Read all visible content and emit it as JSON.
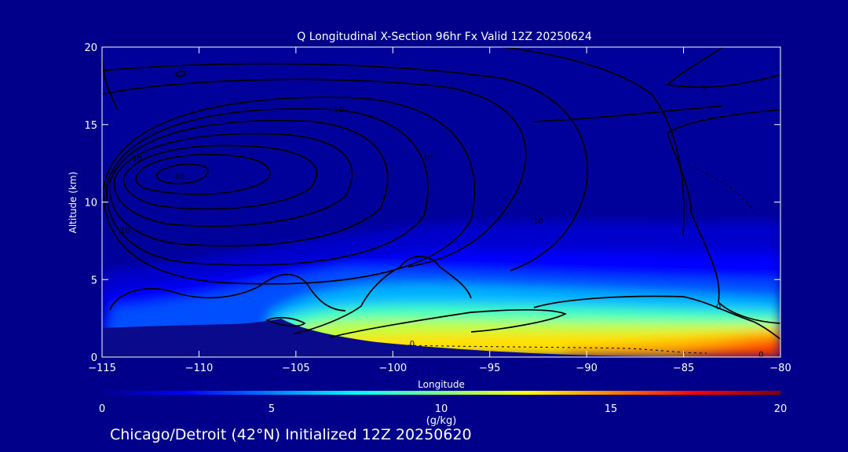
{
  "chart_data": {
    "type": "heatmap",
    "title": "Q Longitudinal X-Section 96hr  Fx Valid 12Z 20250624",
    "xlabel": "Longitude",
    "ylabel": "Altitude (km)",
    "xlim": [
      -115,
      -80
    ],
    "ylim": [
      0,
      20
    ],
    "x_ticks": [
      -115,
      -110,
      -105,
      -100,
      -95,
      -90,
      -85,
      -80
    ],
    "x_tick_labels": [
      "−115",
      "−110",
      "−105",
      "−100",
      "−95",
      "−90",
      "−85",
      "−80"
    ],
    "y_ticks": [
      0,
      5,
      10,
      15,
      20
    ],
    "y_tick_labels": [
      "0",
      "5",
      "10",
      "15",
      "20"
    ],
    "colorbar": {
      "label": "(g/kg)",
      "range": [
        0,
        20
      ],
      "ticks": [
        0,
        5,
        10,
        15,
        20
      ],
      "tick_labels": [
        "0",
        "5",
        "10",
        "15",
        "20"
      ],
      "colormap": "jet"
    },
    "contour_labels": [
      {
        "text": "10",
        "lon": -113.2,
        "alt": 12.8
      },
      {
        "text": "10",
        "lon": -111.0,
        "alt": 11.7
      },
      {
        "text": "10",
        "lon": -113.8,
        "alt": 8.2
      },
      {
        "text": "10",
        "lon": -98.2,
        "alt": 12.9
      },
      {
        "text": "10",
        "lon": -102.8,
        "alt": 16.0
      },
      {
        "text": "10",
        "lon": -92.5,
        "alt": 8.8
      },
      {
        "text": "0",
        "lon": -84.0,
        "alt": 17.4
      },
      {
        "text": "0",
        "lon": -83.2,
        "alt": 3.3
      },
      {
        "text": "0",
        "lon": -99.0,
        "alt": 0.9
      },
      {
        "text": "0",
        "lon": -81.0,
        "alt": 0.2
      }
    ],
    "grid": false,
    "legend": "none"
  },
  "footer": {
    "caption": "Chicago/Detroit (42°N) Initialized 12Z 20250620"
  },
  "colors": {
    "background": "#00008a",
    "axes": "#ffffff",
    "contours": "#000000",
    "terrain": "#0a0a8c"
  }
}
